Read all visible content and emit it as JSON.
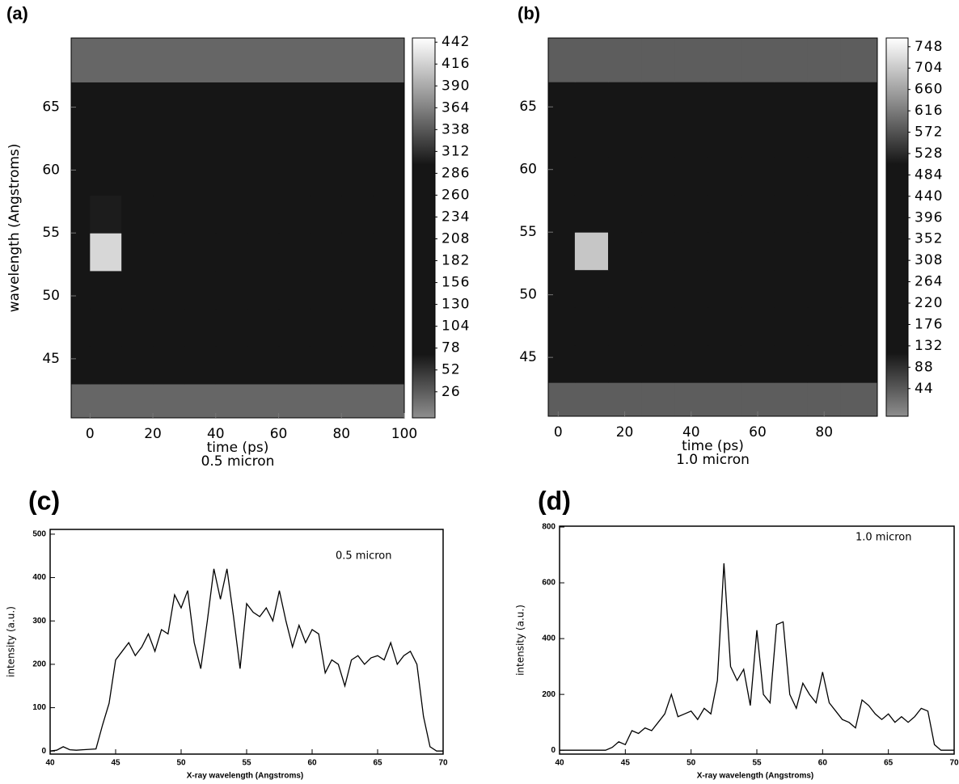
{
  "chart_data": [
    {
      "type": "heatmap",
      "title": "(a)",
      "xlabel": "time (ps)",
      "subtitle": "0.5 micron",
      "ylabel": "wavelength (Angstroms)",
      "xlim": [
        -6,
        100
      ],
      "ylim": [
        40.3,
        70.5
      ],
      "xticks": [
        0,
        20,
        40,
        60,
        80,
        100
      ],
      "yticks": [
        45,
        50,
        55,
        60,
        65
      ],
      "xedges": [
        -6,
        0,
        10,
        20,
        30,
        40,
        50,
        60,
        70,
        80,
        90,
        100
      ],
      "yedges": [
        40.3,
        43,
        46,
        49,
        52,
        55,
        58,
        61,
        64,
        67,
        70.5
      ],
      "values": [
        [
          20,
          20,
          20,
          20,
          20,
          20,
          20,
          20,
          20,
          20,
          20
        ],
        [
          150,
          160,
          150,
          150,
          150,
          150,
          150,
          150,
          150,
          150,
          150
        ],
        [
          200,
          210,
          200,
          200,
          200,
          200,
          200,
          200,
          200,
          200,
          200
        ],
        [
          200,
          240,
          200,
          200,
          200,
          200,
          200,
          200,
          200,
          200,
          200
        ],
        [
          200,
          420,
          210,
          200,
          200,
          200,
          200,
          200,
          200,
          200,
          200
        ],
        [
          200,
          300,
          200,
          200,
          200,
          200,
          200,
          200,
          200,
          200,
          200
        ],
        [
          200,
          200,
          200,
          200,
          200,
          200,
          200,
          200,
          200,
          200,
          200
        ],
        [
          200,
          200,
          200,
          200,
          200,
          200,
          200,
          200,
          200,
          200,
          200
        ],
        [
          200,
          200,
          200,
          200,
          200,
          200,
          200,
          200,
          200,
          200,
          200
        ],
        [
          20,
          20,
          20,
          20,
          20,
          20,
          20,
          20,
          20,
          20,
          20
        ]
      ],
      "clim": [
        -5,
        447
      ],
      "cticks": [
        26,
        52,
        78,
        104,
        130,
        156,
        182,
        208,
        234,
        260,
        286,
        312,
        338,
        364,
        390,
        416,
        442
      ],
      "colormap": [
        "#8e8e8e",
        "#161616",
        "#161616",
        "#161616",
        "#161616",
        "#8e8e8e",
        "#ffffff"
      ]
    },
    {
      "type": "heatmap",
      "title": "(b)",
      "xlabel": "time (ps)",
      "subtitle": "1.0 micron",
      "xlim": [
        -3,
        96
      ],
      "ylim": [
        40.3,
        70.5
      ],
      "xticks": [
        0,
        20,
        40,
        60,
        80
      ],
      "yticks": [
        45,
        50,
        55,
        60,
        65
      ],
      "xedges": [
        -3,
        5,
        15,
        25,
        35,
        45,
        55,
        65,
        75,
        85,
        96
      ],
      "yedges": [
        40.3,
        43,
        46,
        49,
        52,
        55,
        58,
        61,
        64,
        67,
        70.5
      ],
      "values": [
        [
          40,
          40,
          40,
          40,
          40,
          40,
          40,
          40,
          40,
          40
        ],
        [
          400,
          400,
          350,
          300,
          200,
          150,
          150,
          180,
          200,
          250
        ],
        [
          400,
          400,
          400,
          400,
          380,
          300,
          250,
          300,
          350,
          400
        ],
        [
          400,
          400,
          400,
          400,
          400,
          400,
          400,
          400,
          400,
          400
        ],
        [
          400,
          700,
          400,
          400,
          400,
          400,
          400,
          400,
          400,
          400
        ],
        [
          400,
          400,
          400,
          400,
          400,
          400,
          400,
          400,
          400,
          400
        ],
        [
          400,
          400,
          400,
          400,
          400,
          400,
          400,
          400,
          400,
          400
        ],
        [
          400,
          400,
          400,
          400,
          400,
          400,
          400,
          400,
          400,
          400
        ],
        [
          400,
          400,
          400,
          400,
          400,
          400,
          400,
          400,
          400,
          400
        ],
        [
          40,
          40,
          40,
          40,
          40,
          40,
          40,
          40,
          40,
          40
        ]
      ],
      "clim": [
        -13,
        766
      ],
      "cticks": [
        44,
        88,
        132,
        176,
        220,
        264,
        308,
        352,
        396,
        440,
        484,
        528,
        572,
        616,
        660,
        704,
        748
      ],
      "colormap": [
        "#8e8e8e",
        "#161616",
        "#161616",
        "#161616",
        "#161616",
        "#8e8e8e",
        "#ffffff"
      ]
    },
    {
      "type": "line",
      "title": "(c)",
      "xlabel": "X-ray wavelength (Angstroms)",
      "ylabel": "intensity (a.u.)",
      "annotation": "0.5 micron",
      "xlim": [
        40,
        70
      ],
      "ylim": [
        -7,
        511
      ],
      "xticks": [
        40,
        45,
        50,
        55,
        60,
        65,
        70
      ],
      "yticks": [
        0,
        100,
        200,
        300,
        400,
        500
      ],
      "color": "#000000",
      "x": [
        40,
        40.5,
        41,
        41.5,
        42,
        42.5,
        43,
        43.5,
        44,
        44.5,
        45,
        45.5,
        46,
        46.5,
        47,
        47.5,
        48,
        48.5,
        49,
        49.5,
        50,
        50.5,
        51,
        51.5,
        52,
        52.5,
        53,
        53.5,
        54,
        54.5,
        55,
        55.5,
        56,
        56.5,
        57,
        57.5,
        58,
        58.5,
        59,
        59.5,
        60,
        60.5,
        61,
        61.5,
        62,
        62.5,
        63,
        63.5,
        64,
        64.5,
        65,
        65.5,
        66,
        66.5,
        67,
        67.5,
        68,
        68.5,
        69,
        69.5,
        70
      ],
      "values": [
        0,
        2,
        10,
        3,
        2,
        3,
        4,
        5,
        60,
        110,
        210,
        230,
        250,
        220,
        240,
        270,
        230,
        280,
        270,
        360,
        330,
        370,
        250,
        190,
        300,
        420,
        350,
        420,
        310,
        190,
        340,
        320,
        310,
        330,
        300,
        370,
        300,
        240,
        290,
        250,
        280,
        270,
        180,
        210,
        200,
        150,
        210,
        220,
        200,
        215,
        220,
        210,
        250,
        200,
        220,
        230,
        200,
        80,
        10,
        0,
        0
      ]
    },
    {
      "type": "line",
      "title": "(d)",
      "xlabel": "X-ray wavelength (Angstroms)",
      "ylabel": "intensity (a.u.)",
      "annotation": "1.0 micron",
      "xlim": [
        40,
        70
      ],
      "ylim": [
        -14,
        803
      ],
      "xticks": [
        40,
        45,
        50,
        55,
        60,
        65,
        70
      ],
      "yticks": [
        0,
        200,
        400,
        600,
        800
      ],
      "color": "#000000",
      "x": [
        40,
        40.5,
        41,
        41.5,
        42,
        42.5,
        43,
        43.5,
        44,
        44.5,
        45,
        45.5,
        46,
        46.5,
        47,
        47.5,
        48,
        48.5,
        49,
        49.5,
        50,
        50.5,
        51,
        51.5,
        52,
        52.5,
        53,
        53.5,
        54,
        54.5,
        55,
        55.5,
        56,
        56.5,
        57,
        57.5,
        58,
        58.5,
        59,
        59.5,
        60,
        60.5,
        61,
        61.5,
        62,
        62.5,
        63,
        63.5,
        64,
        64.5,
        65,
        65.5,
        66,
        66.5,
        67,
        67.5,
        68,
        68.5,
        69,
        69.5,
        70
      ],
      "values": [
        0,
        0,
        0,
        0,
        0,
        0,
        0,
        0,
        10,
        30,
        20,
        70,
        60,
        80,
        70,
        100,
        130,
        200,
        120,
        130,
        140,
        110,
        150,
        130,
        250,
        670,
        300,
        250,
        290,
        160,
        430,
        200,
        170,
        450,
        460,
        200,
        150,
        240,
        200,
        170,
        280,
        170,
        140,
        110,
        100,
        80,
        180,
        160,
        130,
        110,
        130,
        100,
        120,
        100,
        120,
        150,
        140,
        20,
        0,
        0,
        0
      ]
    }
  ]
}
